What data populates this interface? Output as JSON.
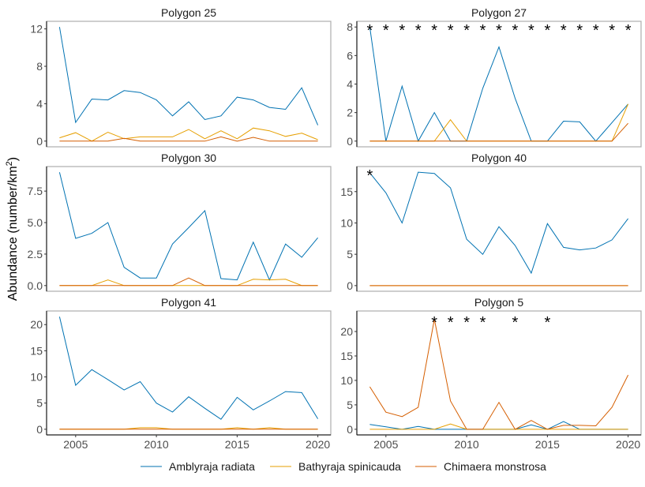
{
  "chart_data": {
    "type": "line",
    "ylabel": "Abundance (number/km",
    "ylabel_superscript": "2",
    "ylabel_close": ")",
    "x": [
      2004,
      2005,
      2006,
      2007,
      2008,
      2009,
      2010,
      2011,
      2012,
      2013,
      2014,
      2015,
      2016,
      2017,
      2018,
      2019,
      2020
    ],
    "xlim": [
      2003.2,
      2020.8
    ],
    "xticks": [
      2005,
      2010,
      2015,
      2020
    ],
    "legend": {
      "placement": "bottom",
      "entries": [
        "Amblyraja radiata",
        "Bathyraja spinicauda",
        "Chimaera monstrosa"
      ]
    },
    "colors": {
      "Amblyraja radiata": "#0072B2",
      "Bathyraja spinicauda": "#E69F00",
      "Chimaera monstrosa": "#D55E00"
    },
    "grid": false,
    "panels": [
      {
        "title": "Polygon 25",
        "ylim": [
          -0.61,
          12.81
        ],
        "yticks": [
          0,
          4,
          8,
          12
        ],
        "ytick_labels": [
          "0",
          "4",
          "8",
          "12"
        ],
        "star_years": [],
        "star_y": null,
        "series": [
          {
            "name": "Amblyraja radiata",
            "values": [
              12.2,
              2.0,
              4.5,
              4.4,
              5.4,
              5.2,
              4.4,
              2.7,
              4.2,
              2.3,
              2.7,
              4.7,
              4.4,
              3.6,
              3.4,
              5.7,
              1.7
            ]
          },
          {
            "name": "Bathyraja spinicauda",
            "values": [
              0.35,
              0.9,
              0,
              0.95,
              0.25,
              0.45,
              0.45,
              0.45,
              1.25,
              0.25,
              1.1,
              0.25,
              1.4,
              1.1,
              0.5,
              0.85,
              0.15
            ]
          },
          {
            "name": "Chimaera monstrosa",
            "values": [
              0,
              0,
              0,
              0,
              0.3,
              0,
              0,
              0,
              0,
              0,
              0.45,
              0,
              0.4,
              0,
              0,
              0,
              0
            ]
          }
        ]
      },
      {
        "title": "Polygon 27",
        "ylim": [
          -0.4,
          8.4
        ],
        "yticks": [
          0,
          2,
          4,
          6,
          8
        ],
        "ytick_labels": [
          "0",
          "2",
          "4",
          "6",
          "8"
        ],
        "star_years": [
          2004,
          2005,
          2006,
          2007,
          2008,
          2009,
          2010,
          2011,
          2012,
          2013,
          2014,
          2015,
          2016,
          2017,
          2018,
          2019,
          2020
        ],
        "star_y": 8,
        "series": [
          {
            "name": "Amblyraja radiata",
            "values": [
              8,
              0,
              3.85,
              0,
              2,
              0,
              0,
              3.7,
              6.6,
              3.0,
              0,
              0,
              1.4,
              1.35,
              0,
              1.3,
              2.6
            ]
          },
          {
            "name": "Bathyraja spinicauda",
            "values": [
              0,
              0,
              0,
              0,
              0,
              1.5,
              0,
              0,
              0,
              0,
              0,
              0,
              0,
              0,
              0,
              0,
              2.6
            ]
          },
          {
            "name": "Chimaera monstrosa",
            "values": [
              0,
              0,
              0,
              0,
              0,
              0,
              0,
              0,
              0,
              0,
              0,
              0,
              0,
              0,
              0,
              0,
              1.25
            ]
          }
        ]
      },
      {
        "title": "Polygon 30",
        "ylim": [
          -0.45,
          9.45
        ],
        "yticks": [
          0,
          2.5,
          5,
          7.5
        ],
        "ytick_labels": [
          "0.0",
          "2.5",
          "5.0",
          "7.5"
        ],
        "star_years": [],
        "star_y": null,
        "series": [
          {
            "name": "Amblyraja radiata",
            "values": [
              9.0,
              3.75,
              4.15,
              5.0,
              1.45,
              0.6,
              0.6,
              3.3,
              4.6,
              5.95,
              0.55,
              0.45,
              3.45,
              0.45,
              3.3,
              2.25,
              3.8
            ]
          },
          {
            "name": "Bathyraja spinicauda",
            "values": [
              0,
              0,
              0,
              0.45,
              0,
              0,
              0,
              0,
              0,
              0,
              0,
              0,
              0.5,
              0.45,
              0.5,
              0,
              0
            ]
          },
          {
            "name": "Chimaera monstrosa",
            "values": [
              0,
              0,
              0,
              0,
              0,
              0,
              0,
              0,
              0.6,
              0,
              0,
              0,
              0,
              0,
              0,
              0,
              0
            ]
          }
        ]
      },
      {
        "title": "Polygon 40",
        "ylim": [
          -0.9,
          19.0
        ],
        "yticks": [
          0,
          5,
          10,
          15
        ],
        "ytick_labels": [
          "0",
          "5",
          "10",
          "15"
        ],
        "star_years": [
          2004
        ],
        "star_y": 18.1,
        "series": [
          {
            "name": "Amblyraja radiata",
            "values": [
              18.0,
              14.8,
              10.0,
              18.1,
              17.9,
              15.6,
              7.4,
              5.0,
              9.4,
              6.4,
              2.0,
              9.9,
              6.1,
              5.7,
              6.0,
              7.3,
              10.7
            ]
          },
          {
            "name": "Bathyraja spinicauda",
            "values": [
              0,
              0,
              0,
              0,
              0,
              0,
              0,
              0,
              0,
              0,
              0,
              0,
              0,
              0,
              0,
              0,
              0
            ]
          },
          {
            "name": "Chimaera monstrosa",
            "values": [
              0,
              0,
              0,
              0,
              0,
              0,
              0,
              0,
              0,
              0,
              0,
              0,
              0,
              0,
              0,
              0,
              0
            ]
          }
        ]
      },
      {
        "title": "Polygon 41",
        "ylim": [
          -1.08,
          22.6
        ],
        "yticks": [
          0,
          5,
          10,
          15,
          20
        ],
        "ytick_labels": [
          "0",
          "5",
          "10",
          "15",
          "20"
        ],
        "star_years": [],
        "star_y": null,
        "series": [
          {
            "name": "Amblyraja radiata",
            "values": [
              21.5,
              8.4,
              11.4,
              9.5,
              7.5,
              9.1,
              5.0,
              3.3,
              6.2,
              4.0,
              1.9,
              6.1,
              3.7,
              5.4,
              7.2,
              7.0,
              2.0
            ]
          },
          {
            "name": "Bathyraja spinicauda",
            "values": [
              0,
              0,
              0,
              0,
              0,
              0.3,
              0.3,
              0,
              0,
              0,
              0,
              0.3,
              0,
              0.3,
              0,
              0,
              0
            ]
          },
          {
            "name": "Chimaera monstrosa",
            "values": [
              0,
              0,
              0,
              0,
              0,
              0,
              0,
              0,
              0,
              0,
              0,
              0,
              0,
              0,
              0,
              0,
              0
            ]
          }
        ]
      },
      {
        "title": "Polygon 5",
        "ylim": [
          -1.15,
          24.2
        ],
        "yticks": [
          0,
          5,
          10,
          15,
          20
        ],
        "ytick_labels": [
          "0",
          "5",
          "10",
          "15",
          "20"
        ],
        "star_years": [
          2008,
          2009,
          2010,
          2011,
          2013,
          2015
        ],
        "star_y": 22.6,
        "series": [
          {
            "name": "Amblyraja radiata",
            "values": [
              1.0,
              0.5,
              0,
              0.6,
              0,
              0,
              0,
              0,
              0,
              0,
              0.9,
              0,
              1.6,
              0,
              0,
              0,
              0
            ]
          },
          {
            "name": "Bathyraja spinicauda",
            "values": [
              0,
              0,
              0,
              0,
              0,
              1.1,
              0,
              0,
              0,
              0,
              0,
              0,
              0,
              0,
              0,
              0,
              0
            ]
          },
          {
            "name": "Chimaera monstrosa",
            "values": [
              8.7,
              3.5,
              2.6,
              4.5,
              22.5,
              5.8,
              0,
              0,
              5.5,
              0,
              1.8,
              0,
              0.8,
              0.8,
              0.7,
              4.5,
              11.1
            ]
          }
        ]
      }
    ]
  }
}
